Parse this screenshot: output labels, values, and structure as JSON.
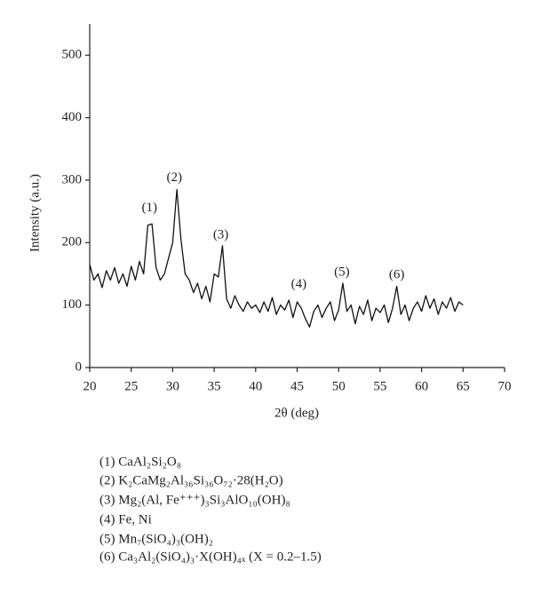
{
  "chart_data": {
    "type": "line",
    "xlabel": "2θ (deg)",
    "ylabel": "Intensity (a.u.)",
    "xlim": [
      20,
      70
    ],
    "xticks": [
      20,
      25,
      30,
      35,
      40,
      45,
      50,
      55,
      60,
      65,
      70
    ],
    "ylim": [
      0,
      550
    ],
    "yticks": [
      0,
      100,
      200,
      300,
      400,
      500
    ],
    "series": [
      {
        "color": "#111111",
        "x": [
          20,
          20.5,
          21,
          21.5,
          22,
          22.5,
          23,
          23.5,
          24,
          24.5,
          25,
          25.5,
          26,
          26.5,
          27,
          27.5,
          28,
          28.5,
          29,
          29.5,
          30,
          30.5,
          31,
          31.5,
          32,
          32.5,
          33,
          33.5,
          34,
          34.5,
          35,
          35.5,
          36,
          36.5,
          37,
          37.5,
          38,
          38.5,
          39,
          39.5,
          40,
          40.5,
          41,
          41.5,
          42,
          42.5,
          43,
          43.5,
          44,
          44.5,
          45,
          45.5,
          46,
          46.5,
          47,
          47.5,
          48,
          48.5,
          49,
          49.5,
          50,
          50.5,
          51,
          51.5,
          52,
          52.5,
          53,
          53.5,
          54,
          54.5,
          55,
          55.5,
          56,
          56.5,
          57,
          57.5,
          58,
          58.5,
          59,
          59.5,
          60,
          60.5,
          61,
          61.5,
          62,
          62.5,
          63,
          63.5,
          64,
          64.5,
          65
        ],
        "values": [
          165,
          140,
          150,
          128,
          155,
          140,
          160,
          135,
          150,
          130,
          162,
          140,
          170,
          150,
          228,
          230,
          160,
          140,
          150,
          175,
          200,
          285,
          205,
          150,
          140,
          120,
          135,
          110,
          130,
          105,
          150,
          145,
          195,
          110,
          95,
          115,
          100,
          90,
          105,
          95,
          100,
          88,
          105,
          90,
          112,
          85,
          100,
          92,
          108,
          80,
          105,
          95,
          78,
          65,
          90,
          100,
          80,
          95,
          105,
          75,
          92,
          135,
          90,
          100,
          70,
          98,
          85,
          108,
          75,
          95,
          88,
          100,
          72,
          95,
          130,
          85,
          100,
          75,
          95,
          105,
          90,
          115,
          95,
          110,
          85,
          105,
          95,
          112,
          90,
          105,
          100
        ]
      }
    ],
    "annotations": [
      "(1)",
      "(2)",
      "(3)",
      "(4)",
      "(5)",
      "(6)"
    ],
    "legend_notes": [
      "(1) CaAl₂Si₂O₈",
      "(2) K₂CaMg₂Al₃₆Si₃₆O₇₂·28(H₂O)",
      "(3) Mg₂(Al, Fe⁺⁺⁺)₃Si₃AlO₁₀(OH)₈",
      "(4) Fe, Ni",
      "(5) Mn₇(SiO₄)₃(OH)₂",
      "(6) Ca₃Al₂(SiO₄)₃·X(OH)₄ₓ (X = 0.2–1.5)"
    ]
  }
}
